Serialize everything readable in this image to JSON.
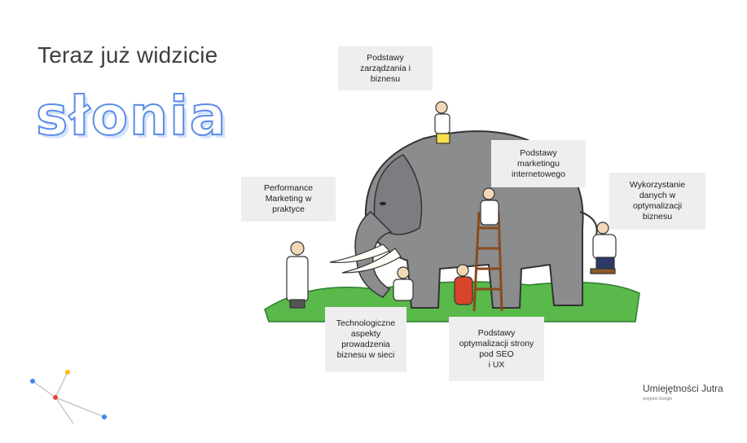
{
  "slide": {
    "subtitle": "Teraz już widzicie",
    "title": "słonia"
  },
  "labels": {
    "management": "Podstawy\nzarządzania i\nbiznesu",
    "marketing": "Podstawy\nmarketingu\ninternetowego",
    "performance": "Performance\nMarketing w\npraktyce",
    "data": "Wykorzystanie\ndanych w\noptymalizacji\nbiznesu",
    "tech": "Technologiczne\naspekty\nprowadzenia\nbiznesu w sieci",
    "seo": "Podstawy\noptymalizacji strony\npod SEO\ni UX"
  },
  "branding": {
    "name": "Umiejętności Jutra",
    "sub": "program Google"
  },
  "colors": {
    "title_outline": "#5b8de8",
    "label_bg": "#eeeeee",
    "elephant": "#8a8c8e",
    "grass": "#4caf50",
    "dot_blue": "#4285f4",
    "dot_red": "#ea4335",
    "dot_yellow": "#fbbc04"
  },
  "illustration": {
    "subject": "elephant-with-blind-men"
  }
}
